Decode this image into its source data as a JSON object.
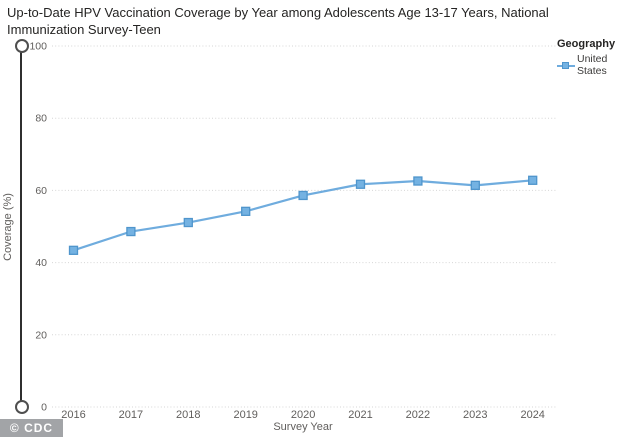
{
  "title": "Up-to-Date HPV Vaccination Coverage by Year among Adolescents Age 13-17 Years, National Immunization Survey-Teen",
  "legend": {
    "title": "Geography",
    "items": [
      {
        "label": "United States"
      }
    ]
  },
  "slider": {
    "max_label": "100",
    "min_label": "0"
  },
  "footer": {
    "logo_text": "© CDC"
  },
  "chart_data": {
    "type": "line",
    "title": "Up-to-Date HPV Vaccination Coverage by Year among Adolescents Age 13-17 Years, National Immunization Survey-Teen",
    "xlabel": "Survey Year",
    "ylabel": "Coverage (%)",
    "x": [
      "2016",
      "2017",
      "2018",
      "2019",
      "2020",
      "2021",
      "2022",
      "2023",
      "2024"
    ],
    "series": [
      {
        "name": "United States",
        "values": [
          43.4,
          48.6,
          51.1,
          54.2,
          58.6,
          61.7,
          62.6,
          61.4,
          62.8
        ]
      }
    ],
    "ylim": [
      0,
      100
    ],
    "yticks": [
      0,
      20,
      40,
      60,
      80,
      100
    ],
    "grid": "horizontal-dotted",
    "legend_position": "top-right"
  },
  "colors": {
    "line": "#6FACDE",
    "marker_fill": "#74B2E2",
    "marker_border": "#4F95CC",
    "grid": "#D6D6D6",
    "axis_text": "#605E5C",
    "title_text": "#252423",
    "legend_text": "#3B3A39",
    "slider": "#2F2F2F",
    "logo_bg": "#A2A4A7",
    "logo_text": "#FFFFFF"
  }
}
